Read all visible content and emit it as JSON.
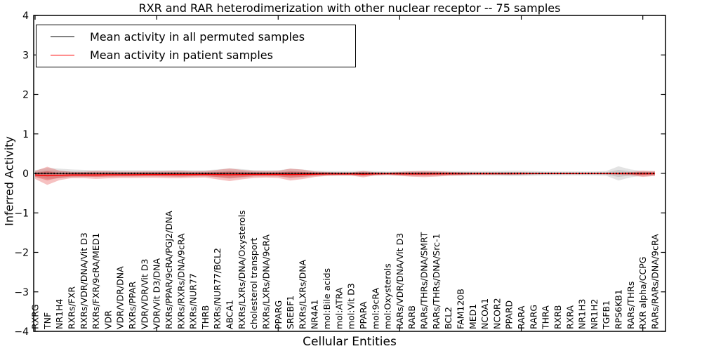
{
  "legend": {
    "items": [
      {
        "label": "Mean activity in all permuted samples",
        "color": "#000000"
      },
      {
        "label": "Mean activity in patient samples",
        "color": "#ff0000"
      }
    ],
    "position": "upper-left"
  },
  "axes": {
    "yticks": [
      4,
      3,
      2,
      1,
      0,
      -1,
      -2,
      -3,
      -4
    ],
    "y_tick_labels": [
      "4",
      "3",
      "2",
      "1",
      "0",
      "−1",
      "−2",
      "−3",
      "−4"
    ],
    "grid": false
  },
  "chart_data": {
    "type": "line",
    "title": "RXR and RAR heterodimerization with other nuclear receptor -- 75 samples",
    "xlabel": "Cellular Entities",
    "ylabel": "Inferred Activity",
    "ylim": [
      -4,
      4
    ],
    "major_tick_every": 10,
    "categories": [
      "RXRG",
      "TNF",
      "NR1H4",
      "RXRs/FXR",
      "RXRs/VDR/DNA/Vit D3",
      "RXRs/FXR/9cRA/MED1",
      "VDR",
      "VDR/VDR/DNA",
      "RXRs/PPAR",
      "VDR/VDR/Vit D3",
      "VDR/Vit D3/DNA",
      "RXRs/PPAR/9cRA/PGJ2/DNA",
      "RXRs/RXRs/DNA/9cRA",
      "RXRs/NUR77",
      "THRB",
      "RXRs/NUR77/BCL2",
      "ABCA1",
      "RXRs/LXRs/DNA/Oxysterols",
      "cholesterol transport",
      "RXRs/LXRs/DNA/9cRA",
      "PPARG",
      "SREBF1",
      "RXRs/LXRs/DNA",
      "NR4A1",
      "mol:Bile acids",
      "mol:ATRA",
      "mol:Vit D3",
      "PPARA",
      "mol:9cRA",
      "mol:Oxysterols",
      "RARs/VDR/DNA/Vit D3",
      "RARB",
      "RARs/THRs/DNA/SMRT",
      "RARs/THRs/DNA/Src-1",
      "BCL2",
      "FAM120B",
      "MED1",
      "NCOA1",
      "NCOR2",
      "PPARD",
      "RARA",
      "RARG",
      "THRA",
      "RXRB",
      "RXRA",
      "NR1H3",
      "NR1H2",
      "TGFB1",
      "RPS6KB1",
      "RARs/THRs",
      "RXR alpha/CCPG",
      "RARs/RARs/DNA/9cRA"
    ],
    "series": [
      {
        "name": "Mean activity in all permuted samples",
        "color": "#000000",
        "linestyle": "dotted",
        "values": [
          0,
          0,
          0,
          0,
          0,
          0,
          0,
          0,
          0,
          0,
          0,
          0,
          0,
          0,
          0,
          0,
          0,
          0,
          0,
          0,
          0,
          0,
          0,
          0,
          0,
          0,
          0,
          0,
          0,
          0,
          0,
          0,
          0,
          0,
          0,
          0,
          0,
          0,
          0,
          0,
          0,
          0,
          0,
          0,
          0,
          0,
          0,
          0,
          0,
          0,
          0,
          0
        ]
      },
      {
        "name": "Mean activity in patient samples",
        "color": "#ff0000",
        "linestyle": "solid",
        "values": [
          -0.04,
          -0.06,
          -0.05,
          -0.04,
          -0.04,
          -0.04,
          -0.035,
          -0.035,
          -0.035,
          -0.03,
          -0.03,
          -0.03,
          -0.03,
          -0.03,
          -0.025,
          -0.03,
          -0.035,
          -0.03,
          -0.025,
          -0.025,
          -0.025,
          -0.03,
          -0.025,
          -0.02,
          -0.015,
          -0.015,
          -0.015,
          -0.02,
          -0.012,
          -0.01,
          -0.012,
          -0.015,
          -0.015,
          -0.012,
          -0.01,
          -0.01,
          -0.008,
          -0.008,
          -0.008,
          -0.008,
          -0.006,
          -0.006,
          -0.005,
          -0.005,
          -0.005,
          -0.004,
          -0.004,
          -0.004,
          -0.005,
          -0.006,
          -0.01,
          -0.005
        ]
      }
    ],
    "bands": [
      {
        "name": "permuted-samples-range",
        "color": "#999999",
        "series": 0,
        "halfwidth": [
          0.08,
          0.14,
          0.12,
          0.1,
          0.09,
          0.08,
          0.08,
          0.08,
          0.08,
          0.08,
          0.08,
          0.08,
          0.09,
          0.08,
          0.08,
          0.1,
          0.13,
          0.11,
          0.08,
          0.08,
          0.08,
          0.12,
          0.1,
          0.07,
          0.06,
          0.06,
          0.06,
          0.07,
          0.06,
          0.05,
          0.06,
          0.06,
          0.06,
          0.06,
          0.06,
          0.06,
          0.06,
          0.06,
          0.06,
          0.07,
          0.07,
          0.06,
          0.05,
          0.05,
          0.05,
          0.05,
          0.05,
          0.06,
          0.18,
          0.1,
          0.06,
          0.06
        ]
      },
      {
        "name": "patient-samples-range",
        "color": "#dd2222",
        "series": 1,
        "halfwidth": [
          0.1,
          0.23,
          0.12,
          0.08,
          0.08,
          0.1,
          0.09,
          0.08,
          0.08,
          0.08,
          0.08,
          0.09,
          0.09,
          0.08,
          0.08,
          0.12,
          0.16,
          0.12,
          0.09,
          0.08,
          0.09,
          0.15,
          0.12,
          0.07,
          0.05,
          0.04,
          0.04,
          0.08,
          0.04,
          0.03,
          0.05,
          0.07,
          0.08,
          0.07,
          0.05,
          0.04,
          0.03,
          0.03,
          0.03,
          0.03,
          0.03,
          0.02,
          0.02,
          0.02,
          0.02,
          0.02,
          0.02,
          0.02,
          0.03,
          0.04,
          0.08,
          0.06
        ]
      }
    ]
  }
}
